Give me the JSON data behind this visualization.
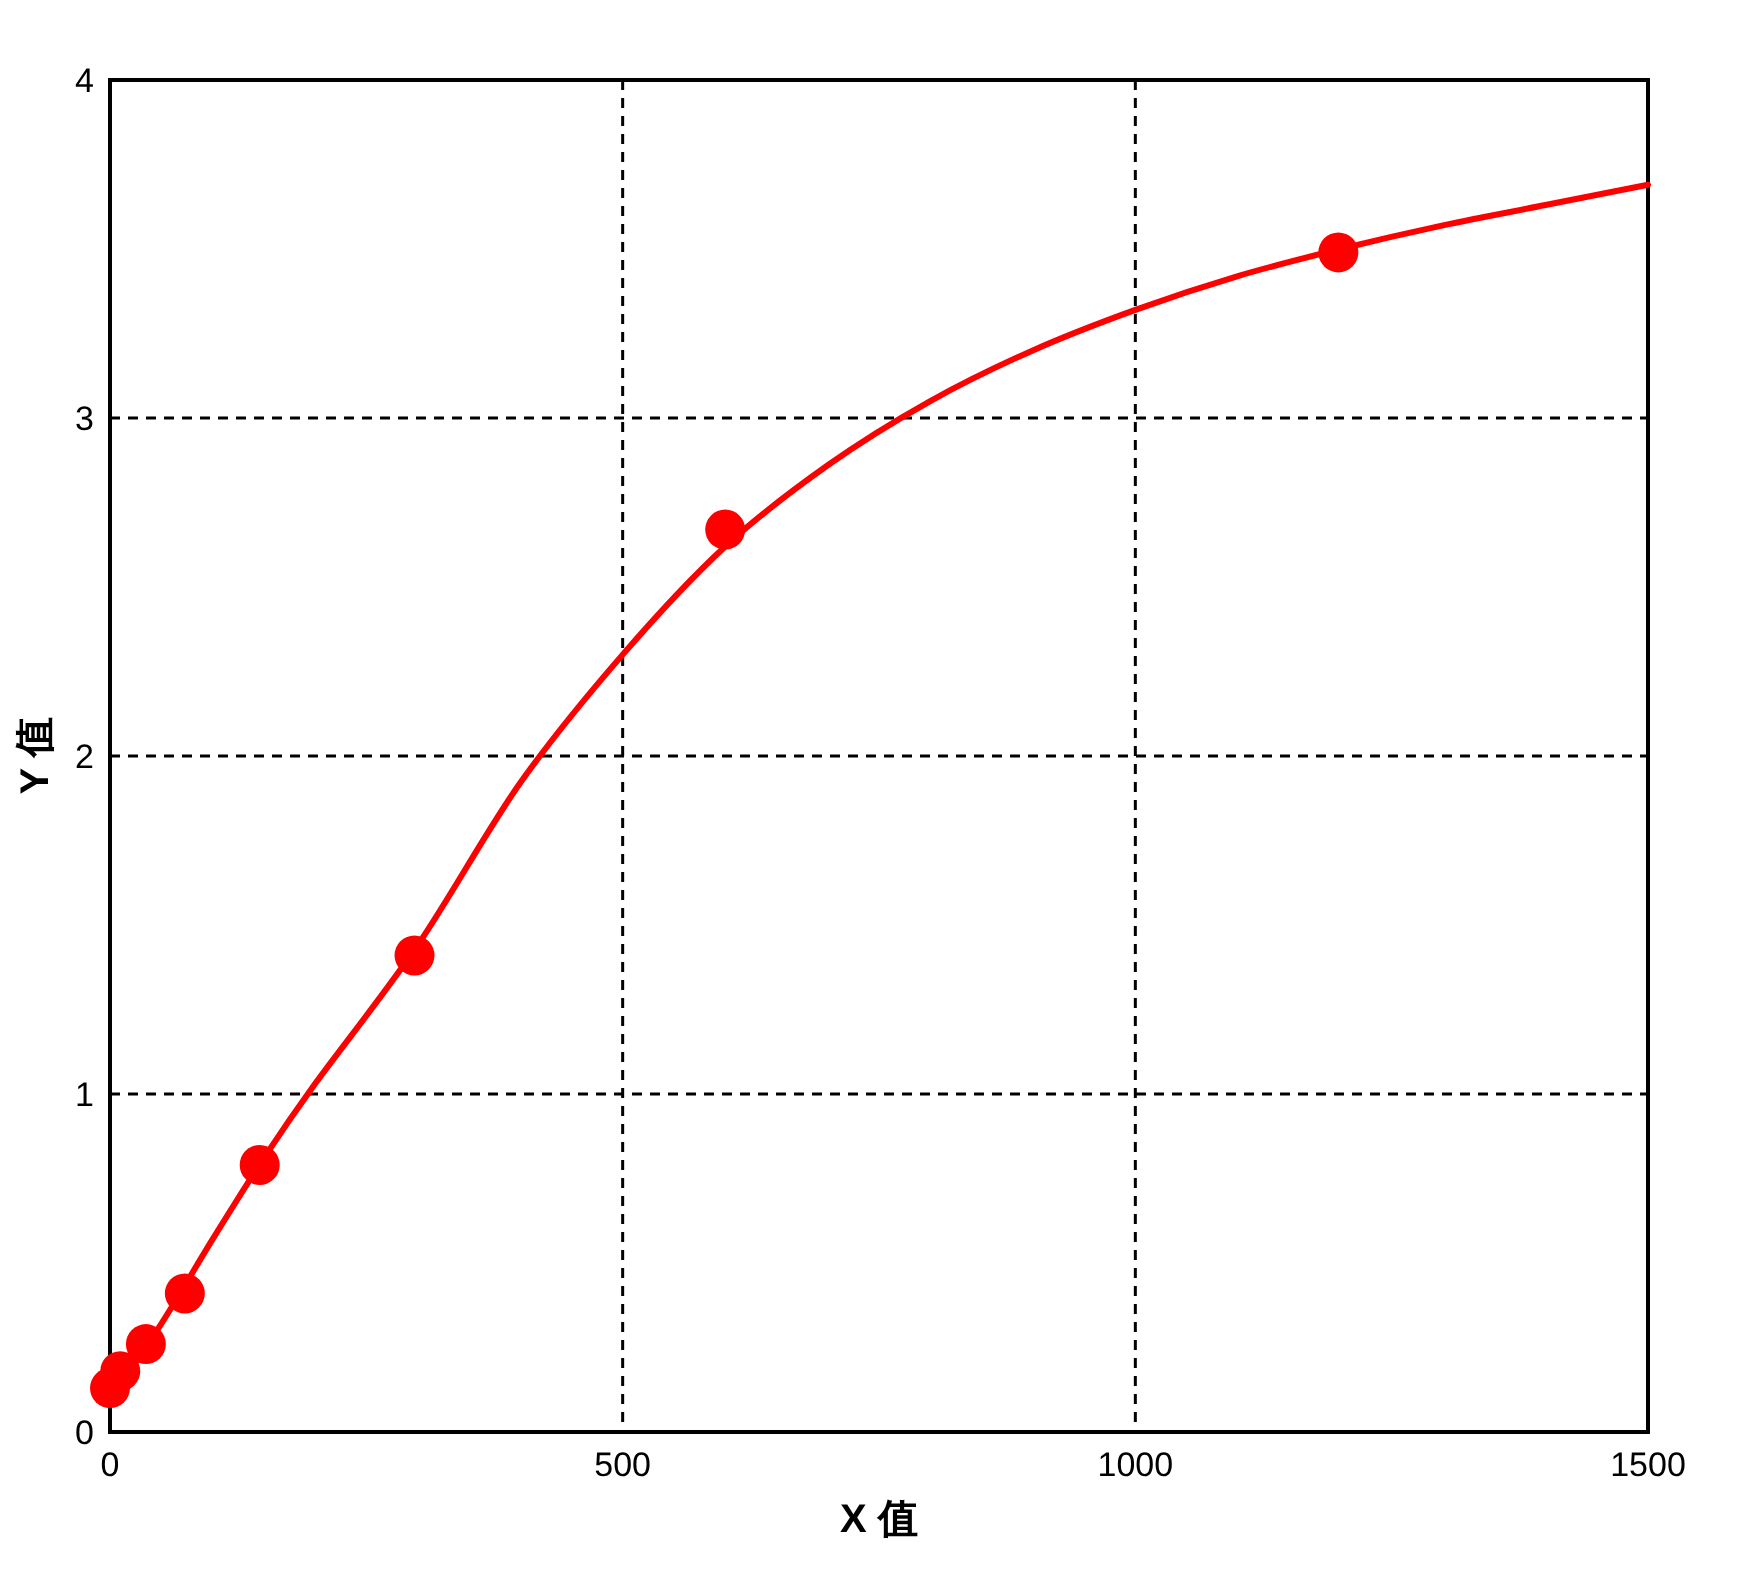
{
  "chart_data": {
    "type": "scatter",
    "xlabel": "X 值",
    "ylabel": "Y 值",
    "xlim": [
      0,
      1500
    ],
    "ylim": [
      0,
      4
    ],
    "xticks": [
      0,
      500,
      1000,
      1500
    ],
    "yticks": [
      0,
      1,
      2,
      3,
      4
    ],
    "grid": true,
    "series": [
      {
        "color": "#ff0000",
        "marker": "circle",
        "x": [
          0,
          10,
          35,
          73,
          146,
          297,
          600,
          1198
        ],
        "values": [
          0.13,
          0.18,
          0.26,
          0.41,
          0.79,
          1.41,
          2.67,
          3.49
        ]
      },
      {
        "type": "line",
        "color": "#ff0000",
        "marker": "none",
        "line_style": "solid",
        "x": [
          0,
          50,
          100,
          150,
          200,
          300,
          400,
          500,
          600,
          700,
          800,
          900,
          1000,
          1100,
          1200,
          1300,
          1400,
          1500
        ],
        "values": [
          0.1,
          0.32,
          0.57,
          0.81,
          1.03,
          1.44,
          1.92,
          2.3,
          2.62,
          2.86,
          3.05,
          3.2,
          3.32,
          3.42,
          3.5,
          3.57,
          3.63,
          3.69
        ]
      }
    ]
  }
}
